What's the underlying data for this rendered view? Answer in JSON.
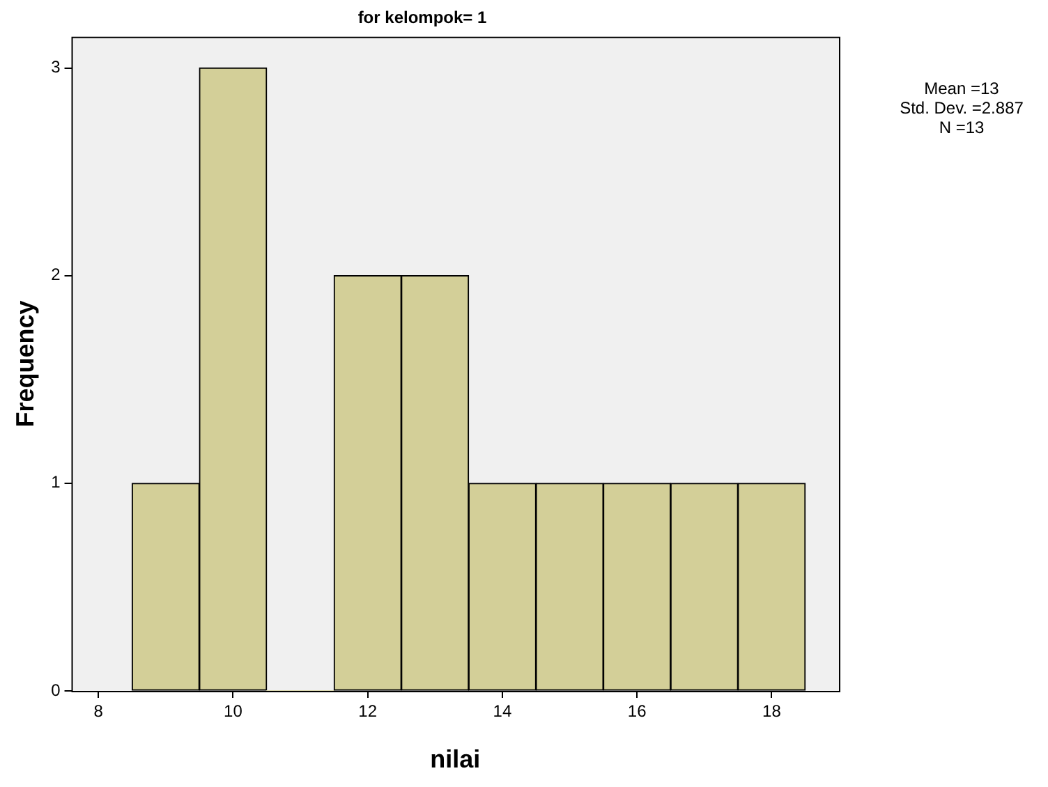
{
  "chart_data": {
    "type": "histogram",
    "title": "for kelompok= 1",
    "xlabel": "nilai",
    "ylabel": "Frequency",
    "bins": [
      8.5,
      9.5,
      10.5,
      11.5,
      12.5,
      13.5,
      14.5,
      15.5,
      16.5,
      17.5,
      18.5
    ],
    "values": [
      1,
      3,
      0,
      2,
      2,
      1,
      1,
      1,
      1,
      1
    ],
    "color": "#d3cf98",
    "xlim": [
      7.6,
      19.0
    ],
    "xticks": [
      8,
      10,
      12,
      14,
      16,
      18
    ],
    "ylim": [
      0,
      3.15
    ],
    "yticks": [
      0,
      1,
      2,
      3
    ],
    "grid": false,
    "legend": false,
    "annotations": [
      "Mean =13",
      "Std. Dev. =2.887",
      "N =13"
    ]
  }
}
